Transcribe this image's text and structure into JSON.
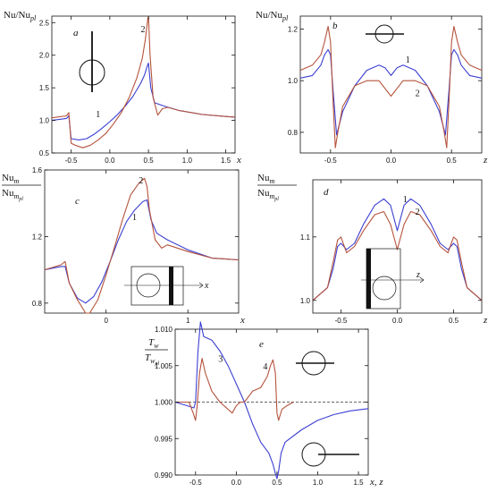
{
  "colors": {
    "curve_1": "#3b3fd1",
    "curve_2": "#b5533c",
    "axis": "#111111"
  },
  "chart_data": [
    {
      "id": "a",
      "type": "line",
      "panel_label": "a",
      "ylabel": "Nu/Nu_pl",
      "xlabel": "x",
      "xlim": [
        -0.75,
        1.62
      ],
      "ylim": [
        0.5,
        2.6
      ],
      "xticks": [
        -0.5,
        0.0,
        0.5,
        1.0,
        1.5
      ],
      "xtick_labels": [
        "-0.5",
        "0.0",
        "0.5",
        "1.0",
        "1.5"
      ],
      "yticks": [
        0.5,
        1.0,
        1.5,
        2.0,
        2.5
      ],
      "ytick_labels": [
        "0.5",
        "1.0",
        "1.5",
        "2.0",
        "2.5"
      ],
      "inset": "circle-vertical-line",
      "series": [
        {
          "name": "1",
          "color": "#3b3fd1",
          "label_at": [
            -0.18,
            1.05
          ],
          "x": [
            -0.75,
            -0.56,
            -0.53,
            -0.5,
            -0.4,
            -0.3,
            -0.2,
            -0.1,
            0.0,
            0.1,
            0.2,
            0.3,
            0.4,
            0.45,
            0.48,
            0.5,
            0.53,
            0.58,
            0.7,
            0.9,
            1.2,
            1.5,
            1.62
          ],
          "y": [
            1.0,
            1.03,
            1.07,
            0.72,
            0.7,
            0.72,
            0.79,
            0.88,
            0.98,
            1.09,
            1.22,
            1.37,
            1.57,
            1.7,
            1.82,
            1.88,
            1.5,
            1.27,
            1.22,
            1.15,
            1.09,
            1.06,
            1.05
          ]
        },
        {
          "name": "2",
          "color": "#b5533c",
          "label_at": [
            0.4,
            2.35
          ],
          "x": [
            -0.75,
            -0.56,
            -0.53,
            -0.5,
            -0.45,
            -0.35,
            -0.25,
            -0.15,
            -0.05,
            0.05,
            0.15,
            0.25,
            0.35,
            0.42,
            0.46,
            0.49,
            0.5,
            0.52,
            0.56,
            0.62,
            0.68,
            0.75,
            0.9,
            1.2,
            1.5,
            1.62
          ],
          "y": [
            1.04,
            1.07,
            1.12,
            0.65,
            0.62,
            0.58,
            0.62,
            0.7,
            0.8,
            0.95,
            1.12,
            1.35,
            1.65,
            1.95,
            2.25,
            2.55,
            2.6,
            2.0,
            1.35,
            1.08,
            1.18,
            1.2,
            1.15,
            1.09,
            1.06,
            1.05
          ]
        }
      ]
    },
    {
      "id": "b",
      "type": "line",
      "panel_label": "b",
      "ylabel": "Nu/Nu_pl",
      "xlabel": "z",
      "xlim": [
        -0.75,
        0.75
      ],
      "ylim": [
        0.72,
        1.25
      ],
      "xticks": [
        -0.5,
        0.0,
        0.5
      ],
      "xtick_labels": [
        "-0.5",
        "0.0",
        "0.5"
      ],
      "yticks": [
        0.8,
        1.0,
        1.2
      ],
      "ytick_labels": [
        "0.8",
        "1.0",
        "1.2"
      ],
      "inset": "circle-horizontal-line",
      "series": [
        {
          "name": "1",
          "color": "#3b3fd1",
          "label_at": [
            0.12,
            1.07
          ],
          "x": [
            -0.75,
            -0.65,
            -0.58,
            -0.55,
            -0.52,
            -0.5,
            -0.48,
            -0.45,
            -0.4,
            -0.3,
            -0.2,
            -0.1,
            -0.05,
            0.0,
            0.05,
            0.1,
            0.2,
            0.3,
            0.4,
            0.45,
            0.48,
            0.5,
            0.52,
            0.55,
            0.58,
            0.65,
            0.75
          ],
          "y": [
            1.01,
            1.02,
            1.06,
            1.1,
            1.12,
            1.1,
            0.97,
            0.79,
            0.88,
            0.98,
            1.04,
            1.06,
            1.05,
            1.02,
            1.05,
            1.06,
            1.04,
            0.98,
            0.88,
            0.79,
            0.97,
            1.1,
            1.12,
            1.1,
            1.06,
            1.02,
            1.01
          ]
        },
        {
          "name": "2",
          "color": "#b5533c",
          "label_at": [
            0.2,
            0.94
          ],
          "x": [
            -0.75,
            -0.65,
            -0.58,
            -0.55,
            -0.52,
            -0.5,
            -0.48,
            -0.46,
            -0.44,
            -0.4,
            -0.3,
            -0.2,
            -0.1,
            0.0,
            0.1,
            0.2,
            0.3,
            0.4,
            0.44,
            0.46,
            0.48,
            0.5,
            0.52,
            0.55,
            0.58,
            0.65,
            0.75
          ],
          "y": [
            1.04,
            1.06,
            1.1,
            1.15,
            1.21,
            1.15,
            0.93,
            0.74,
            0.8,
            0.9,
            0.98,
            1.0,
            1.0,
            0.94,
            1.0,
            1.0,
            0.98,
            0.9,
            0.8,
            0.74,
            0.93,
            1.15,
            1.21,
            1.15,
            1.1,
            1.06,
            1.04
          ]
        }
      ]
    },
    {
      "id": "c",
      "type": "line",
      "panel_label": "c",
      "ylabel": "Nu_m/Nu_m_pl",
      "xlabel": "x",
      "xlim": [
        -0.75,
        1.62
      ],
      "ylim": [
        0.74,
        1.6
      ],
      "xticks": [
        0,
        1
      ],
      "xtick_labels": [
        "0",
        "1"
      ],
      "yticks": [
        0.8,
        1.2,
        1.6
      ],
      "ytick_labels": [
        "0.8",
        "1.2",
        "1.6"
      ],
      "inset": "square-circle-vertical-bar",
      "series": [
        {
          "name": "1",
          "color": "#3b3fd1",
          "label_at": [
            0.32,
            1.3
          ],
          "x": [
            -0.75,
            -0.55,
            -0.5,
            -0.45,
            -0.35,
            -0.25,
            -0.15,
            -0.05,
            0.05,
            0.15,
            0.25,
            0.35,
            0.45,
            0.5,
            0.55,
            0.62,
            0.75,
            1.0,
            1.3,
            1.62
          ],
          "y": [
            1.0,
            1.02,
            1.02,
            0.92,
            0.83,
            0.8,
            0.84,
            0.93,
            1.05,
            1.18,
            1.29,
            1.36,
            1.41,
            1.42,
            1.3,
            1.22,
            1.18,
            1.12,
            1.07,
            1.06
          ]
        },
        {
          "name": "2",
          "color": "#b5533c",
          "label_at": [
            0.4,
            1.52
          ],
          "x": [
            -0.75,
            -0.55,
            -0.5,
            -0.45,
            -0.35,
            -0.25,
            -0.2,
            -0.1,
            0.0,
            0.1,
            0.2,
            0.3,
            0.4,
            0.47,
            0.5,
            0.53,
            0.6,
            0.68,
            0.75,
            1.0,
            1.3,
            1.62
          ],
          "y": [
            1.0,
            1.03,
            1.05,
            0.92,
            0.82,
            0.74,
            0.74,
            0.82,
            0.97,
            1.13,
            1.3,
            1.45,
            1.52,
            1.55,
            1.5,
            1.36,
            1.18,
            1.13,
            1.15,
            1.11,
            1.07,
            1.06
          ]
        }
      ]
    },
    {
      "id": "d",
      "type": "line",
      "panel_label": "d",
      "ylabel": "Nu_m/Nu_m_pl",
      "xlabel": "z",
      "xlim": [
        -0.75,
        0.75
      ],
      "ylim": [
        0.98,
        1.19
      ],
      "xticks": [
        -0.5,
        0.0,
        0.5
      ],
      "xtick_labels": [
        "-0.5",
        "0.0",
        "0.5"
      ],
      "yticks": [
        1.0,
        1.1
      ],
      "ytick_labels": [
        "1.0",
        "1.1"
      ],
      "inset": "square-circle-vertical-bar",
      "series": [
        {
          "name": "1",
          "color": "#3b3fd1",
          "label_at": [
            0.05,
            1.155
          ],
          "x": [
            -0.75,
            -0.62,
            -0.57,
            -0.53,
            -0.5,
            -0.45,
            -0.38,
            -0.3,
            -0.2,
            -0.12,
            -0.06,
            0.0,
            0.06,
            0.12,
            0.2,
            0.3,
            0.38,
            0.45,
            0.5,
            0.53,
            0.57,
            0.62,
            0.75
          ],
          "y": [
            1.0,
            1.02,
            1.05,
            1.085,
            1.09,
            1.08,
            1.09,
            1.12,
            1.15,
            1.16,
            1.15,
            1.11,
            1.15,
            1.16,
            1.15,
            1.12,
            1.09,
            1.08,
            1.09,
            1.085,
            1.05,
            1.02,
            1.0
          ]
        },
        {
          "name": "2",
          "color": "#b5533c",
          "label_at": [
            0.16,
            1.135
          ],
          "x": [
            -0.75,
            -0.62,
            -0.57,
            -0.53,
            -0.5,
            -0.45,
            -0.38,
            -0.3,
            -0.2,
            -0.12,
            -0.06,
            0.0,
            0.06,
            0.12,
            0.2,
            0.3,
            0.38,
            0.45,
            0.5,
            0.53,
            0.57,
            0.62,
            0.75
          ],
          "y": [
            1.0,
            1.02,
            1.06,
            1.095,
            1.1,
            1.075,
            1.085,
            1.11,
            1.135,
            1.14,
            1.12,
            1.08,
            1.12,
            1.14,
            1.135,
            1.11,
            1.085,
            1.075,
            1.1,
            1.095,
            1.06,
            1.02,
            1.0
          ]
        }
      ]
    },
    {
      "id": "e",
      "type": "line",
      "panel_label": "e",
      "ylabel": "T_w/T_w_pl",
      "xlabel": "x, z",
      "xlim": [
        -0.75,
        1.62
      ],
      "ylim": [
        0.99,
        1.01
      ],
      "xticks": [
        -0.5,
        0.0,
        0.5,
        1.0,
        1.5
      ],
      "xtick_labels": [
        "-0.5",
        "0.0",
        "0.5",
        "1.0",
        "1.5"
      ],
      "yticks": [
        0.99,
        0.995,
        1.0,
        1.005,
        1.01
      ],
      "ytick_labels": [
        "0.990",
        "0.995",
        "1.000",
        "1.005",
        "1.010"
      ],
      "reference_line": 1.0,
      "inset": "circle-horizontal-line",
      "series": [
        {
          "name": "3",
          "color": "#3b3fd1",
          "label_at": [
            -0.22,
            1.0055
          ],
          "x": [
            -0.75,
            -0.6,
            -0.52,
            -0.5,
            -0.47,
            -0.44,
            -0.4,
            -0.3,
            -0.2,
            -0.1,
            0.0,
            0.1,
            0.2,
            0.3,
            0.4,
            0.45,
            0.48,
            0.5,
            0.52,
            0.55,
            0.6,
            0.8,
            1.0,
            1.2,
            1.4,
            1.62
          ],
          "y": [
            1.0,
            0.9995,
            0.9992,
            1.0,
            1.007,
            1.011,
            1.009,
            1.0085,
            1.007,
            1.005,
            1.0025,
            1.0,
            0.997,
            0.9945,
            0.993,
            0.9915,
            0.9902,
            0.9895,
            0.9905,
            0.993,
            0.9945,
            0.9962,
            0.9975,
            0.9983,
            0.9988,
            0.9991
          ]
        },
        {
          "name": "4",
          "color": "#b5533c",
          "label_at": [
            0.33,
            1.0045
          ],
          "x": [
            -0.75,
            -0.58,
            -0.53,
            -0.5,
            -0.48,
            -0.45,
            -0.42,
            -0.38,
            -0.3,
            -0.2,
            -0.1,
            -0.05,
            0.0,
            0.05,
            0.1,
            0.2,
            0.3,
            0.38,
            0.42,
            0.45,
            0.48,
            0.5,
            0.52,
            0.56,
            0.62,
            0.7
          ],
          "y": [
            1.0,
            1.0,
            0.9985,
            0.9975,
            0.9995,
            1.004,
            1.006,
            1.004,
            1.0015,
            1.0,
            0.999,
            0.9985,
            0.9995,
            1.0,
            1.0,
            1.0015,
            1.002,
            1.0035,
            1.005,
            1.0058,
            1.004,
            0.9985,
            0.9975,
            0.999,
            0.9995,
            1.0
          ]
        }
      ]
    }
  ]
}
